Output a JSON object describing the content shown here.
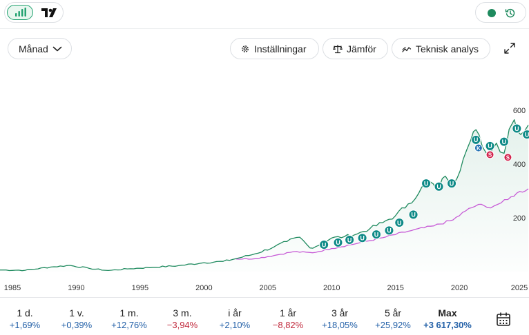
{
  "toolbar": {
    "period_label": "Månad",
    "settings_label": "Inställningar",
    "compare_label": "Jämför",
    "analysis_label": "Teknisk analys"
  },
  "icons": {
    "chart_type": "bar-chart-icon",
    "brand": "tradingview-logo",
    "history": "history-icon",
    "expand": "expand-icon",
    "calendar": "calendar-icon"
  },
  "colors": {
    "accent": "#1fa06e",
    "price_line": "#1e8a5e",
    "compare_line": "#c75bd6",
    "marker_u": "#0e8a87",
    "marker_k": "#1f6fb2",
    "marker_s": "#d2234d",
    "positive": "#2461a8",
    "negative": "#c0283b"
  },
  "chart_data": {
    "type": "line",
    "x_ticks": [
      "1985",
      "1990",
      "1995",
      "2000",
      "2005",
      "2010",
      "2015",
      "2020",
      "2025"
    ],
    "y_ticks": [
      "600",
      "400",
      "200"
    ],
    "xlim": [
      1984,
      2025.5
    ],
    "ylim": [
      0,
      600
    ],
    "series": [
      {
        "x": [
          1984,
          1986,
          1988,
          1989.5,
          1991,
          1992.5,
          1994,
          1996,
          1998,
          2000,
          2001.5,
          2002.5,
          2004,
          2005.5,
          2006.5,
          2007.5,
          2008.3,
          2009,
          2010,
          2011,
          2012,
          2013,
          2014,
          2015,
          2016,
          2016.8,
          2017.5,
          2018.2,
          2018.9,
          2019.6,
          2020.3,
          2020.9,
          2021.3,
          2021.8,
          2022.4,
          2022.9,
          2023.5,
          2023.9,
          2024.3,
          2024.8,
          2025.4
        ],
        "values": [
          6,
          5,
          17,
          23,
          12,
          4,
          10,
          16,
          22,
          33,
          38,
          48,
          66,
          92,
          112,
          128,
          88,
          98,
          125,
          130,
          140,
          160,
          182,
          208,
          252,
          290,
          342,
          305,
          355,
          330,
          418,
          490,
          528,
          465,
          440,
          478,
          440,
          530,
          565,
          510,
          545
        ]
      },
      {
        "x": [
          2002.5,
          2004,
          2005.5,
          2007,
          2008.5,
          2010,
          2012,
          2014,
          2016,
          2018,
          2019.5,
          2020.5,
          2021.5,
          2022.2,
          2023,
          2023.8,
          2024.5,
          2025.4
        ],
        "values": [
          47,
          48,
          60,
          74,
          70,
          86,
          105,
          126,
          150,
          170,
          192,
          226,
          250,
          238,
          250,
          268,
          292,
          308
        ]
      }
    ],
    "markers": [
      {
        "label": "U",
        "x": 2009.4,
        "y": 100
      },
      {
        "label": "U",
        "x": 2010.5,
        "y": 108
      },
      {
        "label": "U",
        "x": 2011.4,
        "y": 118
      },
      {
        "label": "U",
        "x": 2012.4,
        "y": 125
      },
      {
        "label": "U",
        "x": 2013.5,
        "y": 138
      },
      {
        "label": "U",
        "x": 2014.5,
        "y": 153
      },
      {
        "label": "U",
        "x": 2015.3,
        "y": 182
      },
      {
        "label": "U",
        "x": 2016.4,
        "y": 212
      },
      {
        "label": "U",
        "x": 2017.4,
        "y": 328
      },
      {
        "label": "U",
        "x": 2018.4,
        "y": 316
      },
      {
        "label": "U",
        "x": 2019.4,
        "y": 328
      },
      {
        "label": "U",
        "x": 2021.3,
        "y": 490
      },
      {
        "label": "K",
        "x": 2021.5,
        "y": 460
      },
      {
        "label": "U",
        "x": 2022.4,
        "y": 467
      },
      {
        "label": "S",
        "x": 2022.4,
        "y": 435
      },
      {
        "label": "U",
        "x": 2023.5,
        "y": 483
      },
      {
        "label": "S",
        "x": 2023.8,
        "y": 425
      },
      {
        "label": "U",
        "x": 2024.5,
        "y": 532
      },
      {
        "label": "U",
        "x": 2025.3,
        "y": 510
      }
    ]
  },
  "performance": [
    {
      "label": "1 d.",
      "value": "+1,69%",
      "trend": "pos"
    },
    {
      "label": "1 v.",
      "value": "+0,39%",
      "trend": "pos"
    },
    {
      "label": "1 m.",
      "value": "+12,76%",
      "trend": "pos"
    },
    {
      "label": "3 m.",
      "value": "−3,94%",
      "trend": "neg"
    },
    {
      "label": "i år",
      "value": "+2,10%",
      "trend": "pos"
    },
    {
      "label": "1 år",
      "value": "−8,82%",
      "trend": "neg"
    },
    {
      "label": "3 år",
      "value": "+18,05%",
      "trend": "pos"
    },
    {
      "label": "5 år",
      "value": "+25,92%",
      "trend": "pos"
    },
    {
      "label": "Max",
      "value": "+3 617,30%",
      "trend": "pos"
    }
  ]
}
